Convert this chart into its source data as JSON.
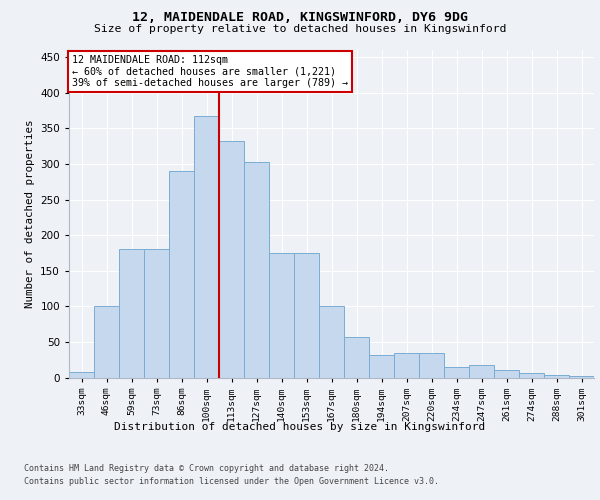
{
  "title1": "12, MAIDENDALE ROAD, KINGSWINFORD, DY6 9DG",
  "title2": "Size of property relative to detached houses in Kingswinford",
  "xlabel": "Distribution of detached houses by size in Kingswinford",
  "ylabel": "Number of detached properties",
  "categories": [
    "33sqm",
    "46sqm",
    "59sqm",
    "73sqm",
    "86sqm",
    "100sqm",
    "113sqm",
    "127sqm",
    "140sqm",
    "153sqm",
    "167sqm",
    "180sqm",
    "194sqm",
    "207sqm",
    "220sqm",
    "234sqm",
    "247sqm",
    "261sqm",
    "274sqm",
    "288sqm",
    "301sqm"
  ],
  "values": [
    8,
    100,
    180,
    180,
    290,
    367,
    332,
    303,
    175,
    175,
    100,
    57,
    32,
    35,
    35,
    15,
    18,
    10,
    7,
    4,
    2
  ],
  "bar_color": "#c5d8ed",
  "bar_edgecolor": "#7aadd4",
  "vline_x": 6.0,
  "vline_color": "#cc0000",
  "annotation_text": "12 MAIDENDALE ROAD: 112sqm\n← 60% of detached houses are smaller (1,221)\n39% of semi-detached houses are larger (789) →",
  "annotation_box_color": "#ffffff",
  "annotation_box_edgecolor": "#cc0000",
  "ylim": [
    0,
    460
  ],
  "yticks": [
    0,
    50,
    100,
    150,
    200,
    250,
    300,
    350,
    400,
    450
  ],
  "footer1": "Contains HM Land Registry data © Crown copyright and database right 2024.",
  "footer2": "Contains public sector information licensed under the Open Government Licence v3.0.",
  "bg_color": "#eef2f7",
  "plot_bg_color": "#eef2f7"
}
